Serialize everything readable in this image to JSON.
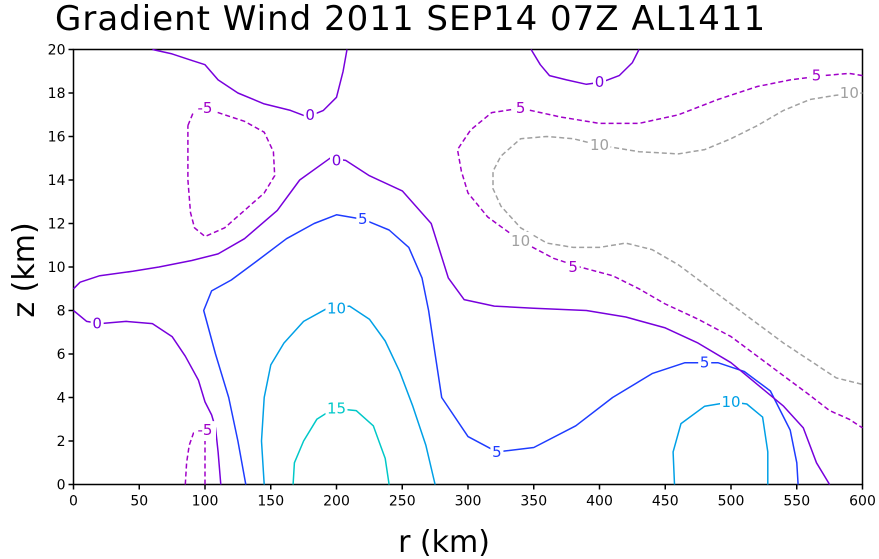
{
  "chart_data": {
    "type": "contour",
    "title": "Gradient Wind 2011 SEP14 07Z  AL1411",
    "xlabel": "r (km)",
    "ylabel": "z (km)",
    "xlim": [
      0,
      600
    ],
    "ylim": [
      0,
      20
    ],
    "x_ticks": [
      0,
      50,
      100,
      150,
      200,
      250,
      300,
      350,
      400,
      450,
      500,
      550,
      600
    ],
    "y_ticks": [
      0,
      2,
      4,
      6,
      8,
      10,
      12,
      14,
      16,
      18,
      20
    ],
    "x_tick_labels": [
      "0",
      "50",
      "100",
      "150",
      "200",
      "250",
      "300",
      "350",
      "400",
      "450",
      "500",
      "550",
      "600"
    ],
    "y_tick_labels": [
      "0",
      "2",
      "4",
      "6",
      "8",
      "10",
      "12",
      "14",
      "16",
      "18",
      "20"
    ],
    "grid": false,
    "levels": [
      {
        "value": -10,
        "label": "10",
        "color": "#a0a0a0",
        "dashed": true
      },
      {
        "value": -5,
        "label": "5",
        "color": "#a000c8",
        "dashed": true
      },
      {
        "value": 0,
        "label": "0",
        "color": "#7800dc",
        "dashed": false
      },
      {
        "value": 5,
        "label": "5",
        "color": "#1e3cff",
        "dashed": false
      },
      {
        "value": 10,
        "label": "10",
        "color": "#00a0e6",
        "dashed": false
      },
      {
        "value": 15,
        "label": "15",
        "color": "#00c8c8",
        "dashed": false
      }
    ],
    "contours": [
      {
        "level": 15,
        "points": [
          [
            167,
            0
          ],
          [
            168,
            1
          ],
          [
            175,
            2
          ],
          [
            185,
            3
          ],
          [
            198,
            3.5
          ],
          [
            215,
            3.4
          ],
          [
            228,
            2.7
          ],
          [
            237,
            1.2
          ],
          [
            240,
            0
          ]
        ],
        "labels": [
          {
            "text": "15",
            "x": 200,
            "y": 3.5
          }
        ]
      },
      {
        "level": 10,
        "points": [
          [
            145,
            0
          ],
          [
            143,
            2
          ],
          [
            145,
            4
          ],
          [
            150,
            5.5
          ],
          [
            160,
            6.5
          ],
          [
            175,
            7.5
          ],
          [
            193,
            8.1
          ],
          [
            210,
            8.2
          ],
          [
            225,
            7.6
          ],
          [
            237,
            6.6
          ],
          [
            248,
            5.2
          ],
          [
            258,
            3.6
          ],
          [
            268,
            1.8
          ],
          [
            275,
            0
          ]
        ],
        "labels": [
          {
            "text": "10",
            "x": 200,
            "y": 8.1
          }
        ]
      },
      {
        "level": 10,
        "points": [
          [
            457,
            0
          ],
          [
            456,
            1.5
          ],
          [
            462,
            2.8
          ],
          [
            480,
            3.6
          ],
          [
            500,
            3.8
          ],
          [
            512,
            3.7
          ],
          [
            524,
            3.1
          ],
          [
            528,
            1.5
          ],
          [
            528,
            0
          ]
        ],
        "labels": [
          {
            "text": "10",
            "x": 500,
            "y": 3.8
          }
        ]
      },
      {
        "level": 5,
        "points": [
          [
            131,
            0
          ],
          [
            125,
            2
          ],
          [
            118,
            4
          ],
          [
            108,
            6
          ],
          [
            99,
            8
          ],
          [
            105,
            8.9
          ],
          [
            120,
            9.4
          ],
          [
            140,
            10.3
          ],
          [
            162,
            11.3
          ],
          [
            183,
            12
          ],
          [
            200,
            12.4
          ],
          [
            220,
            12.2
          ],
          [
            240,
            11.7
          ],
          [
            255,
            10.9
          ],
          [
            265,
            9.5
          ],
          [
            270,
            8
          ],
          [
            275,
            6
          ],
          [
            280,
            4
          ],
          [
            300,
            2.2
          ],
          [
            322,
            1.5
          ],
          [
            350,
            1.7
          ],
          [
            382,
            2.7
          ],
          [
            410,
            4
          ],
          [
            440,
            5.1
          ],
          [
            465,
            5.6
          ],
          [
            490,
            5.6
          ],
          [
            510,
            5.2
          ],
          [
            530,
            4.3
          ],
          [
            545,
            2.5
          ],
          [
            550,
            1
          ],
          [
            551,
            0
          ]
        ],
        "labels": [
          {
            "text": "5",
            "x": 220,
            "y": 12.2
          },
          {
            "text": "5",
            "x": 322,
            "y": 1.5
          },
          {
            "text": "5",
            "x": 480,
            "y": 5.6
          }
        ]
      },
      {
        "level": 0,
        "points": [
          [
            0,
            9
          ],
          [
            5,
            9.3
          ],
          [
            20,
            9.6
          ],
          [
            45,
            9.8
          ],
          [
            65,
            10
          ],
          [
            90,
            10.3
          ],
          [
            110,
            10.6
          ],
          [
            130,
            11.3
          ],
          [
            155,
            12.6
          ],
          [
            172,
            14
          ],
          [
            195,
            15
          ],
          [
            207,
            14.9
          ],
          [
            225,
            14.2
          ],
          [
            250,
            13.5
          ],
          [
            272,
            12
          ],
          [
            285,
            9.5
          ],
          [
            297,
            8.5
          ],
          [
            320,
            8.2
          ],
          [
            350,
            8.1
          ],
          [
            390,
            8
          ],
          [
            420,
            7.7
          ],
          [
            450,
            7.2
          ],
          [
            475,
            6.5
          ],
          [
            500,
            5.6
          ],
          [
            520,
            4.6
          ],
          [
            540,
            3.6
          ],
          [
            555,
            2.6
          ],
          [
            565,
            1
          ],
          [
            575,
            0
          ]
        ],
        "labels": [
          {
            "text": "0",
            "x": 200,
            "y": 14.9
          }
        ]
      },
      {
        "level": 0,
        "points": [
          [
            0,
            8
          ],
          [
            10,
            7.5
          ],
          [
            20,
            7.4
          ],
          [
            40,
            7.5
          ],
          [
            60,
            7.4
          ],
          [
            75,
            6.8
          ],
          [
            85,
            5.9
          ],
          [
            95,
            4.8
          ],
          [
            100,
            3.8
          ],
          [
            105,
            3.2
          ],
          [
            108,
            2.6
          ],
          [
            110,
            1.5
          ],
          [
            112,
            0
          ]
        ],
        "labels": [
          {
            "text": "0",
            "x": 18,
            "y": 7.4
          }
        ]
      },
      {
        "level": 0,
        "points": [
          [
            60,
            20
          ],
          [
            75,
            19.8
          ],
          [
            90,
            19.5
          ],
          [
            100,
            19.3
          ],
          [
            110,
            18.6
          ],
          [
            125,
            18
          ],
          [
            145,
            17.5
          ],
          [
            165,
            17.2
          ],
          [
            178,
            16.9
          ],
          [
            190,
            17.2
          ],
          [
            200,
            17.8
          ],
          [
            205,
            19
          ],
          [
            208,
            20
          ]
        ],
        "labels": [
          {
            "text": "0",
            "x": 180,
            "y": 17
          }
        ]
      },
      {
        "level": 0,
        "points": [
          [
            348,
            20
          ],
          [
            355,
            19.3
          ],
          [
            362,
            18.8
          ],
          [
            375,
            18.6
          ],
          [
            390,
            18.4
          ],
          [
            402,
            18.5
          ],
          [
            415,
            18.8
          ],
          [
            425,
            19.4
          ],
          [
            430,
            20
          ]
        ],
        "labels": [
          {
            "text": "0",
            "x": 400,
            "y": 18.5
          }
        ]
      },
      {
        "level": -5,
        "points": [
          [
            85,
            0
          ],
          [
            86,
            1
          ],
          [
            88,
            1.8
          ],
          [
            92,
            2.5
          ]
        ],
        "labels": [
          {
            "text": "-5",
            "x": 100,
            "y": 2.5
          }
        ]
      },
      {
        "level": -5,
        "points": [
          [
            100,
            0
          ],
          [
            100,
            1.2
          ],
          [
            100,
            2
          ]
        ],
        "labels": []
      },
      {
        "level": -5,
        "points": [
          [
            87,
            16.5
          ],
          [
            91,
            17.1
          ],
          [
            100,
            17.3
          ],
          [
            115,
            17
          ],
          [
            130,
            16.7
          ],
          [
            145,
            16.2
          ],
          [
            152,
            15.3
          ],
          [
            153,
            14.2
          ],
          [
            145,
            13.4
          ],
          [
            130,
            12.6
          ],
          [
            115,
            11.8
          ],
          [
            100,
            11.4
          ],
          [
            92,
            11.8
          ],
          [
            89,
            12.5
          ],
          [
            87,
            14
          ],
          [
            87,
            16.5
          ]
        ],
        "labels": [
          {
            "text": "-5",
            "x": 100,
            "y": 17.3
          }
        ]
      },
      {
        "level": -5,
        "points": [
          [
            600,
            18.8
          ],
          [
            590,
            18.9
          ],
          [
            570,
            18.8
          ],
          [
            545,
            18.6
          ],
          [
            520,
            18.3
          ],
          [
            490,
            17.7
          ],
          [
            460,
            17
          ],
          [
            430,
            16.6
          ],
          [
            400,
            16.6
          ],
          [
            370,
            16.9
          ],
          [
            340,
            17.3
          ],
          [
            318,
            17.1
          ],
          [
            302,
            16.3
          ],
          [
            292,
            15.4
          ],
          [
            295,
            14.4
          ],
          [
            300,
            13.4
          ],
          [
            315,
            12.3
          ],
          [
            340,
            11.2
          ],
          [
            365,
            10.4
          ],
          [
            385,
            10
          ],
          [
            410,
            9.6
          ],
          [
            430,
            9
          ],
          [
            450,
            8.3
          ],
          [
            475,
            7.6
          ],
          [
            500,
            6.8
          ],
          [
            520,
            5.9
          ],
          [
            540,
            5
          ],
          [
            560,
            4.1
          ],
          [
            575,
            3.4
          ],
          [
            590,
            3
          ],
          [
            600,
            2.6
          ]
        ],
        "labels": [
          {
            "text": "5",
            "x": 340,
            "y": 17.3
          },
          {
            "text": "5",
            "x": 380,
            "y": 10
          },
          {
            "text": "5",
            "x": 565,
            "y": 18.8
          }
        ]
      },
      {
        "level": -10,
        "points": [
          [
            600,
            18
          ],
          [
            580,
            17.9
          ],
          [
            560,
            17.7
          ],
          [
            540,
            17.2
          ],
          [
            520,
            16.5
          ],
          [
            500,
            15.9
          ],
          [
            480,
            15.4
          ],
          [
            460,
            15.2
          ],
          [
            430,
            15.3
          ],
          [
            400,
            15.6
          ],
          [
            380,
            15.9
          ],
          [
            360,
            16
          ],
          [
            340,
            15.9
          ],
          [
            325,
            15.1
          ],
          [
            319,
            14.4
          ],
          [
            319,
            13.6
          ],
          [
            325,
            12.8
          ],
          [
            340,
            11.8
          ],
          [
            360,
            11.1
          ],
          [
            380,
            10.9
          ],
          [
            400,
            10.9
          ],
          [
            420,
            11.1
          ],
          [
            440,
            10.8
          ],
          [
            460,
            10.1
          ],
          [
            480,
            9.2
          ],
          [
            500,
            8.3
          ],
          [
            520,
            7.4
          ],
          [
            540,
            6.5
          ],
          [
            560,
            5.7
          ],
          [
            580,
            4.9
          ],
          [
            600,
            4.6
          ]
        ],
        "labels": [
          {
            "text": "10",
            "x": 400,
            "y": 15.6
          },
          {
            "text": "10",
            "x": 340,
            "y": 11.2
          },
          {
            "text": "10",
            "x": 590,
            "y": 18
          }
        ]
      }
    ]
  }
}
